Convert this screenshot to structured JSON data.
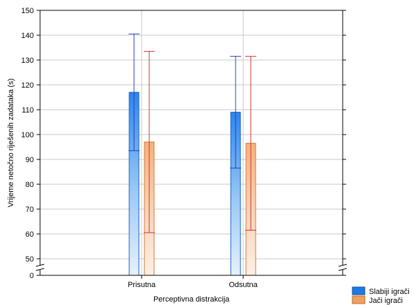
{
  "chart_data": {
    "type": "bar",
    "title": "",
    "xlabel": "Perceptivna distrakcija",
    "ylabel": "Vrijeme netočno riješenih zadataka (s)",
    "categories": [
      "Prisutna",
      "Odsutna"
    ],
    "ylim": [
      0,
      150
    ],
    "axis_break": [
      0,
      45
    ],
    "y_ticks": [
      0,
      50,
      60,
      70,
      80,
      90,
      100,
      110,
      120,
      130,
      140,
      150
    ],
    "grid": true,
    "legend_position": "bottom-right",
    "series": [
      {
        "name": "Slabiji igrači",
        "color": "#1e78e6",
        "values": [
          117,
          109
        ],
        "ci_low": [
          93.5,
          86.5
        ],
        "ci_high": [
          140.5,
          131.5
        ]
      },
      {
        "name": "Jači igrači",
        "color": "#f0a060",
        "values": [
          97,
          96.5
        ],
        "ci_low": [
          60.5,
          61.5
        ],
        "ci_high": [
          133.5,
          131.5
        ]
      }
    ]
  }
}
